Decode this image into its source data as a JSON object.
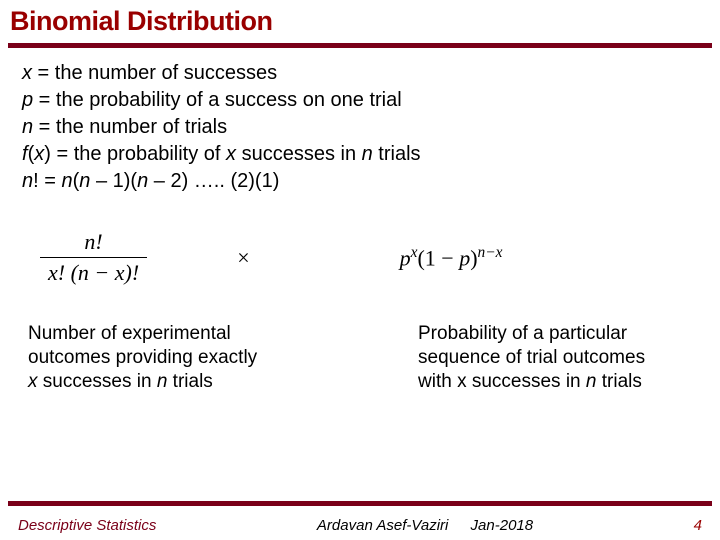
{
  "title": "Binomial Distribution",
  "definitions": {
    "l1_pre": "x",
    "l1_post": " = the number of successes",
    "l2_pre": "p",
    "l2_post": " = the probability of a success on one trial",
    "l3_pre": "n",
    "l3_post": " = the number of trials",
    "l4_pre": "f",
    "l4_mid1": "(",
    "l4_mid2": "x",
    "l4_mid3": ") = the probability of ",
    "l4_mid4": "x",
    "l4_mid5": " successes in ",
    "l4_mid6": "n",
    "l4_mid7": " trials",
    "l5_pre": "n",
    "l5_mid1": "! = ",
    "l5_mid2": "n",
    "l5_mid3": "(",
    "l5_mid4": "n",
    "l5_mid5": " – 1)(",
    "l5_mid6": "n",
    "l5_mid7": " – 2) ….. (2)(1)"
  },
  "formula": {
    "numerator": "n!",
    "denominator": "x! (n − x)!",
    "times": "×",
    "rhs_p": "p",
    "rhs_x": "x",
    "rhs_open": "(1 − ",
    "rhs_p2": "p",
    "rhs_close": ")",
    "rhs_exp": "n−x"
  },
  "explain": {
    "left_l1": "Number of experimental",
    "left_l2": " outcomes providing exactly",
    "left_l3_a": "x",
    "left_l3_b": " successes in ",
    "left_l3_c": "n",
    "left_l3_d": " trials",
    "right_l1": "Probability of a particular",
    "right_l2": " sequence of trial outcomes",
    "right_l3_a": " with x successes in ",
    "right_l3_b": "n",
    "right_l3_c": " trials"
  },
  "footer": {
    "left": "Descriptive Statistics",
    "author": "Ardavan Asef-Vaziri",
    "date": "Jan-2018",
    "page": "4"
  },
  "colors": {
    "brand": "#7a0019",
    "title": "#990000",
    "text": "#000000",
    "background": "#ffffff"
  }
}
